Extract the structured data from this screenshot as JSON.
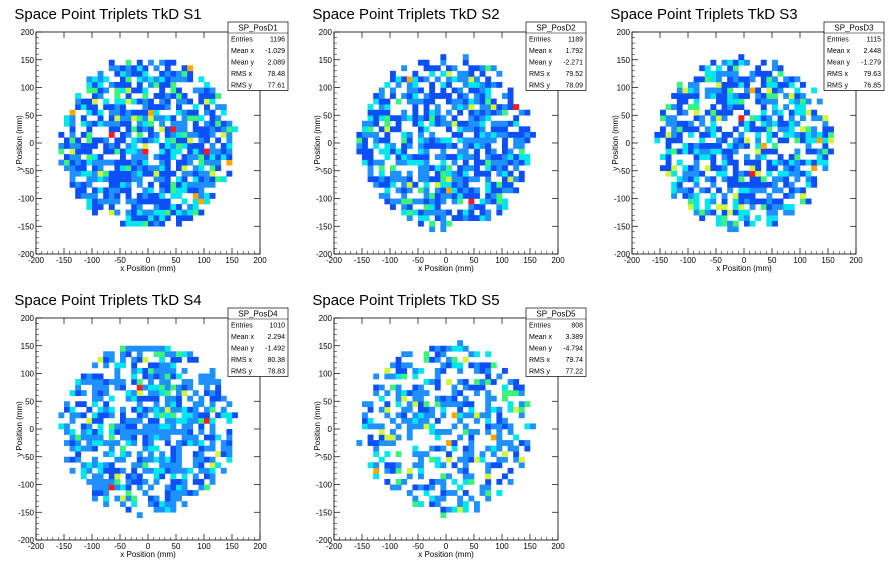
{
  "chart_data": [
    {
      "type": "heatmap",
      "title": "Space Point Triplets TkD S1",
      "xlabel": "x Position (mm)",
      "ylabel": "y Position (mm)",
      "xlim": [
        -200,
        200
      ],
      "ylim": [
        -200,
        200
      ],
      "xticks": [
        -200,
        -150,
        -100,
        -50,
        0,
        50,
        100,
        150,
        200
      ],
      "yticks": [
        -200,
        -150,
        -100,
        -50,
        0,
        50,
        100,
        150,
        200
      ],
      "bin_size_mm": 10,
      "region_radius_mm": 155,
      "stats": {
        "name": "SP_PosD1",
        "rows": [
          {
            "label": "Entries",
            "value": "1196"
          },
          {
            "label": "Mean x",
            "value": "-1.029"
          },
          {
            "label": "Mean y",
            "value": "2.089"
          },
          {
            "label": "RMS x",
            "value": "78.48"
          },
          {
            "label": "RMS y",
            "value": "77.61"
          }
        ]
      },
      "hotspots": [
        [
          -10,
          -20
        ],
        [
          100,
          -20
        ],
        [
          -40,
          -30
        ],
        [
          40,
          20
        ],
        [
          -70,
          10
        ]
      ]
    },
    {
      "type": "heatmap",
      "title": "Space Point Triplets TkD S2",
      "xlabel": "x Position (mm)",
      "ylabel": "y Position (mm)",
      "xlim": [
        -200,
        200
      ],
      "ylim": [
        -200,
        200
      ],
      "xticks": [
        -200,
        -150,
        -100,
        -50,
        0,
        50,
        100,
        150,
        200
      ],
      "yticks": [
        -200,
        -150,
        -100,
        -50,
        0,
        50,
        100,
        150,
        200
      ],
      "bin_size_mm": 10,
      "region_radius_mm": 155,
      "stats": {
        "name": "SP_PosD2",
        "rows": [
          {
            "label": "Entries",
            "value": "1189"
          },
          {
            "label": "Mean x",
            "value": "1.792"
          },
          {
            "label": "Mean y",
            "value": "-2.271"
          },
          {
            "label": "RMS x",
            "value": "79.52"
          },
          {
            "label": "RMS y",
            "value": "78.09"
          }
        ]
      },
      "hotspots": [
        [
          40,
          -110
        ],
        [
          120,
          60
        ]
      ]
    },
    {
      "type": "heatmap",
      "title": "Space Point Triplets TkD S3",
      "xlabel": "x Position (mm)",
      "ylabel": "y Position (mm)",
      "xlim": [
        -200,
        200
      ],
      "ylim": [
        -200,
        200
      ],
      "xticks": [
        -200,
        -150,
        -100,
        -50,
        0,
        50,
        100,
        150,
        200
      ],
      "yticks": [
        -200,
        -150,
        -100,
        -50,
        0,
        50,
        100,
        150,
        200
      ],
      "bin_size_mm": 10,
      "region_radius_mm": 155,
      "stats": {
        "name": "SP_PosD3",
        "rows": [
          {
            "label": "Entries",
            "value": "1115"
          },
          {
            "label": "Mean x",
            "value": "2.448"
          },
          {
            "label": "Mean y",
            "value": "-1.279"
          },
          {
            "label": "RMS x",
            "value": "79.63"
          },
          {
            "label": "RMS y",
            "value": "76.85"
          }
        ]
      },
      "hotspots": [
        [
          -10,
          40
        ],
        [
          10,
          -60
        ]
      ]
    },
    {
      "type": "heatmap",
      "title": "Space Point Triplets TkD S4",
      "xlabel": "x Position (mm)",
      "ylabel": "y Position (mm)",
      "xlim": [
        -200,
        200
      ],
      "ylim": [
        -200,
        200
      ],
      "xticks": [
        -200,
        -150,
        -100,
        -50,
        0,
        50,
        100,
        150,
        200
      ],
      "yticks": [
        -200,
        -150,
        -100,
        -50,
        0,
        50,
        100,
        150,
        200
      ],
      "bin_size_mm": 10,
      "region_radius_mm": 155,
      "stats": {
        "name": "SP_PosD4",
        "rows": [
          {
            "label": "Entries",
            "value": "1010"
          },
          {
            "label": "Mean x",
            "value": "2.294"
          },
          {
            "label": "Mean y",
            "value": "-1.492"
          },
          {
            "label": "RMS x",
            "value": "80.38"
          },
          {
            "label": "RMS y",
            "value": "78.83"
          }
        ]
      },
      "hotspots": [
        [
          -70,
          -110
        ],
        [
          80,
          100
        ],
        [
          100,
          10
        ],
        [
          -20,
          70
        ]
      ]
    },
    {
      "type": "heatmap",
      "title": "Space Point Triplets TkD S5",
      "xlabel": "x Position (mm)",
      "ylabel": "y Position (mm)",
      "xlim": [
        -200,
        200
      ],
      "ylim": [
        -200,
        200
      ],
      "xticks": [
        -200,
        -150,
        -100,
        -50,
        0,
        50,
        100,
        150,
        200
      ],
      "yticks": [
        -200,
        -150,
        -100,
        -50,
        0,
        50,
        100,
        150,
        200
      ],
      "bin_size_mm": 10,
      "region_radius_mm": 155,
      "stats": {
        "name": "SP_PosD5",
        "rows": [
          {
            "label": "Entries",
            "value": "808"
          },
          {
            "label": "Mean x",
            "value": "3.389"
          },
          {
            "label": "Mean y",
            "value": "-4.794"
          },
          {
            "label": "RMS x",
            "value": "79.74"
          },
          {
            "label": "RMS y",
            "value": "77.22"
          }
        ]
      },
      "hotspots": [
        [
          60,
          -70
        ],
        [
          40,
          -110
        ]
      ]
    }
  ],
  "colors": {
    "palette": [
      "#0c4ff7",
      "#1e90ff",
      "#00e5ee",
      "#3cf27a",
      "#d2f53c",
      "#ffa500",
      "#ff1a1a"
    ],
    "background": "#ffffff",
    "frame": "#000000"
  }
}
